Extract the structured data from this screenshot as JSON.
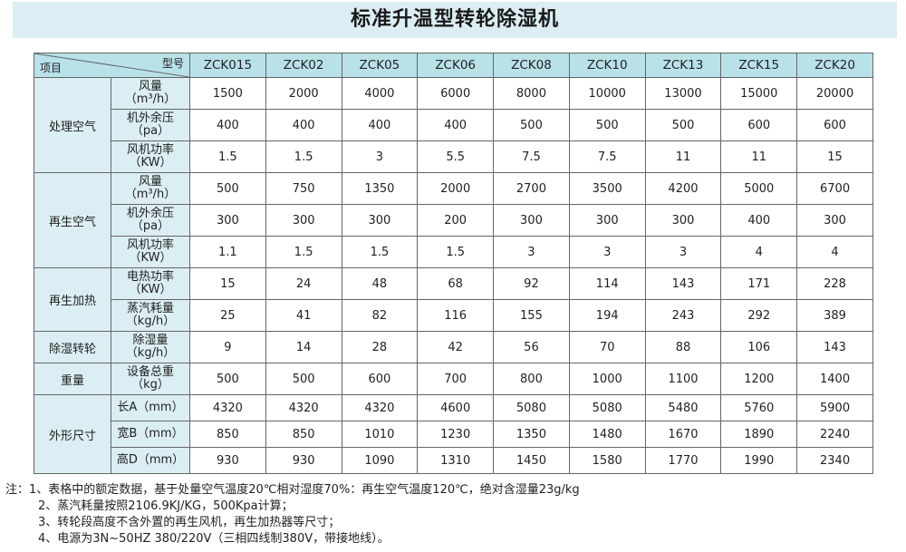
{
  "title": "标准升温型转轮除湿机",
  "header": {
    "corner_top": "型号",
    "corner_bottom": "项目",
    "models": [
      "ZCK015",
      "ZCK02",
      "ZCK05",
      "ZCK06",
      "ZCK08",
      "ZCK10",
      "ZCK13",
      "ZCK15",
      "ZCK20"
    ]
  },
  "groups": {
    "g0": "处理空气",
    "g1": "再生空气",
    "g2": "再生加热",
    "g3": "除湿转轮",
    "g4": "重量",
    "g5": "外形尺寸"
  },
  "params": {
    "p0": [
      "风量",
      "（m³/h）"
    ],
    "p1": [
      "机外余压",
      "（pa）"
    ],
    "p2": [
      "风机功率",
      "（KW）"
    ],
    "p3": [
      "风量",
      "（m³/h）"
    ],
    "p4": [
      "机外余压",
      "（pa）"
    ],
    "p5": [
      "风机功率",
      "（KW）"
    ],
    "p6": [
      "电热功率",
      "（KW）"
    ],
    "p7": [
      "蒸汽耗量",
      "（kg/h）"
    ],
    "p8": [
      "除湿量",
      "（kg/h）"
    ],
    "p9": [
      "设备总重",
      "（kg）"
    ],
    "p10": [
      "长A（mm）",
      ""
    ],
    "p11": [
      "宽B（mm）",
      ""
    ],
    "p12": [
      "高D（mm）",
      ""
    ]
  },
  "rows": {
    "r0": [
      "1500",
      "2000",
      "4000",
      "6000",
      "8000",
      "10000",
      "13000",
      "15000",
      "20000"
    ],
    "r1": [
      "400",
      "400",
      "400",
      "400",
      "500",
      "500",
      "500",
      "600",
      "600"
    ],
    "r2": [
      "1.5",
      "1.5",
      "3",
      "5.5",
      "7.5",
      "7.5",
      "11",
      "11",
      "15"
    ],
    "r3": [
      "500",
      "750",
      "1350",
      "2000",
      "2700",
      "3500",
      "4200",
      "5000",
      "6700"
    ],
    "r4": [
      "300",
      "300",
      "300",
      "200",
      "300",
      "300",
      "300",
      "400",
      "300"
    ],
    "r5": [
      "1.1",
      "1.5",
      "1.5",
      "1.5",
      "3",
      "3",
      "3",
      "4",
      "4"
    ],
    "r6": [
      "15",
      "24",
      "48",
      "68",
      "92",
      "114",
      "143",
      "171",
      "228"
    ],
    "r7": [
      "25",
      "41",
      "82",
      "116",
      "155",
      "194",
      "243",
      "292",
      "389"
    ],
    "r8": [
      "9",
      "14",
      "28",
      "42",
      "56",
      "70",
      "88",
      "106",
      "143"
    ],
    "r9": [
      "500",
      "500",
      "600",
      "700",
      "800",
      "1000",
      "1100",
      "1200",
      "1400"
    ],
    "r10": [
      "4320",
      "4320",
      "4320",
      "4600",
      "5080",
      "5080",
      "5480",
      "5760",
      "5900"
    ],
    "r11": [
      "850",
      "850",
      "1010",
      "1230",
      "1350",
      "1480",
      "1670",
      "1890",
      "2240"
    ],
    "r12": [
      "930",
      "930",
      "1090",
      "1310",
      "1450",
      "1580",
      "1770",
      "1990",
      "2340"
    ]
  },
  "notes": [
    "注：1、表格中的额定数据，基于处量空气温度20℃相对湿度70%：再生空气温度120℃，绝对含湿量23g/kg",
    "2、蒸汽耗量按照2106.9KJ/KG，500Kpa计算；",
    "3、转轮段高度不含外置的再生风机，再生加热器等尺寸；",
    "4、电源为3N~50HZ 380/220V（三相四线制380V，带接地线）。"
  ]
}
